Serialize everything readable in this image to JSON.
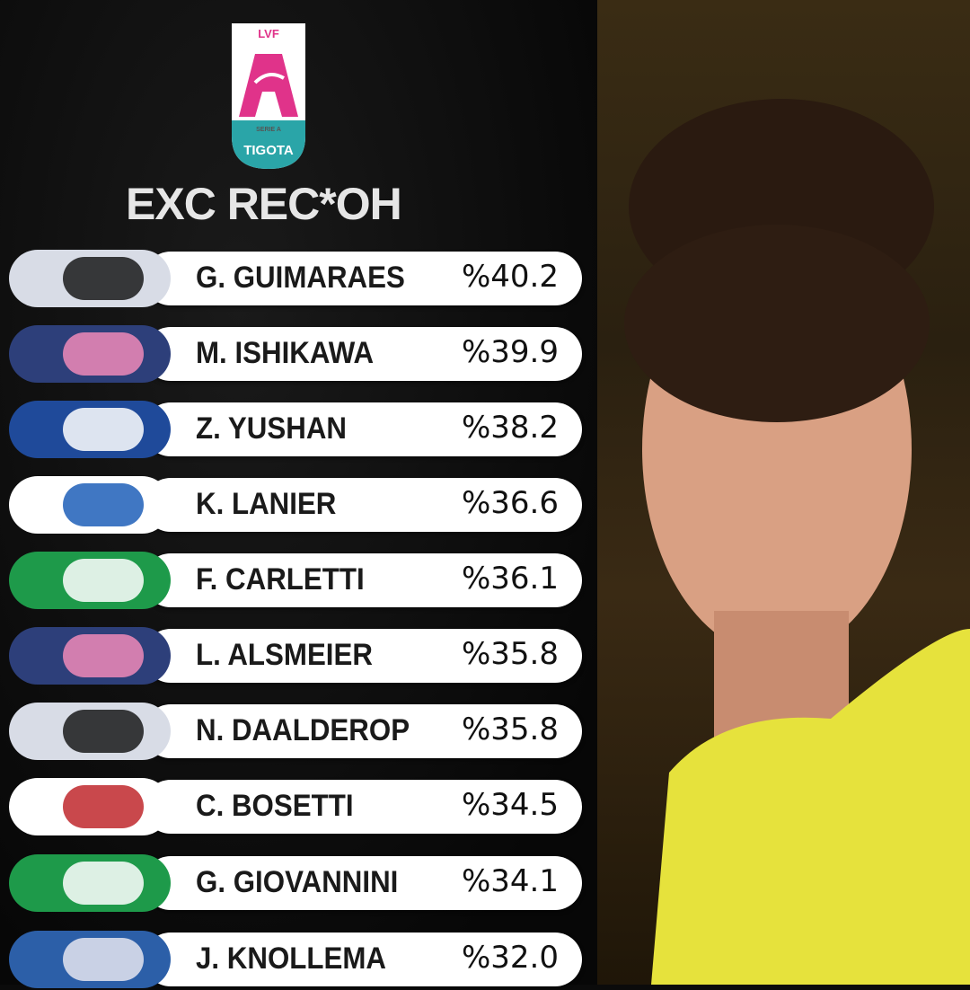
{
  "logo": {
    "top_text": "LVF",
    "sub_text": "SERIE A",
    "sponsor": "TIGOTA",
    "colors": {
      "pink": "#e0338a",
      "teal": "#2aa5a8"
    }
  },
  "title": "EXC REC*OH",
  "rows": [
    {
      "name": "G. GUIMARAES",
      "value": "%40.2",
      "team_icon": "panther-logo"
    },
    {
      "name": "M. ISHIKAWA",
      "value": "%39.9",
      "team_icon": "igor-volley-logo"
    },
    {
      "name": "Z. YUSHAN",
      "value": "%38.2",
      "team_icon": "consolini-volley-logo"
    },
    {
      "name": "K. LANIER",
      "value": "%36.6",
      "team_icon": "chevron-team-logo"
    },
    {
      "name": "F. CARLETTI",
      "value": "%36.1",
      "team_icon": "tiger-green-logo"
    },
    {
      "name": "L. ALSMEIER",
      "value": "%35.8",
      "team_icon": "igor-volley-logo"
    },
    {
      "name": "N. DAALDEROP",
      "value": "%35.8",
      "team_icon": "panther-logo"
    },
    {
      "name": "C. BOSETTI",
      "value": "%34.5",
      "team_icon": "volley-bergamo-logo"
    },
    {
      "name": "G. GIOVANNINI",
      "value": "%34.1",
      "team_icon": "tiger-green-logo"
    },
    {
      "name": "J. KNOLLEMA",
      "value": "%32.0",
      "team_icon": "florence-volley-logo"
    }
  ]
}
